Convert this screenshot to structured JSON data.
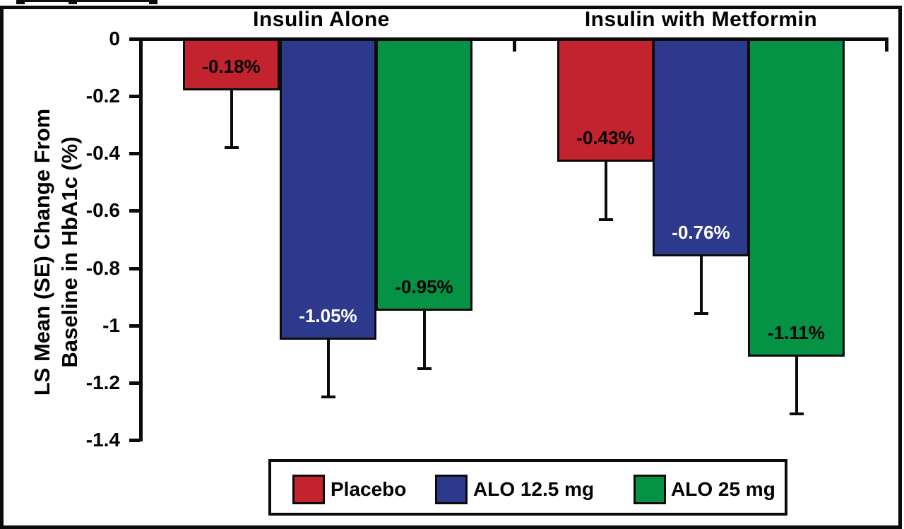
{
  "chart_data": {
    "type": "bar",
    "title": "",
    "ylabel_lines": [
      "LS Mean (SE) Change From",
      "Baseline in HbA1c (%)"
    ],
    "yticks": [
      "0",
      "-0.2",
      "-0.4",
      "-0.6",
      "-0.8",
      "-1",
      "-1.2",
      "-1.4"
    ],
    "ylim": [
      0,
      -1.4
    ],
    "grid": false,
    "legend_position": "bottom",
    "se": 0.2,
    "series": [
      {
        "name": "Placebo",
        "color": "#C2232F",
        "label_color": "#000000"
      },
      {
        "name": "ALO 12.5 mg",
        "color": "#2D3A8C",
        "label_color": "#FFFFFF"
      },
      {
        "name": "ALO 25 mg",
        "color": "#059245",
        "label_color": "#000000"
      }
    ],
    "groups": [
      {
        "label": "Insulin Alone",
        "bars": [
          {
            "series": "Placebo",
            "value": -0.18,
            "label": "-0.18%",
            "error_tip": -0.38
          },
          {
            "series": "ALO 12.5 mg",
            "value": -1.05,
            "label": "-1.05%",
            "error_tip": -1.25
          },
          {
            "series": "ALO 25 mg",
            "value": -0.95,
            "label": "-0.95%",
            "error_tip": -1.15
          }
        ]
      },
      {
        "label": "Insulin with Metformin",
        "bars": [
          {
            "series": "Placebo",
            "value": -0.43,
            "label": "-0.43%",
            "error_tip": -0.63
          },
          {
            "series": "ALO 12.5 mg",
            "value": -0.76,
            "label": "-0.76%",
            "error_tip": -0.96
          },
          {
            "series": "ALO 25 mg",
            "value": -1.11,
            "label": "-1.11%",
            "error_tip": -1.31
          }
        ]
      }
    ]
  },
  "legend": {
    "items": [
      {
        "label": "Placebo",
        "color": "#C2232F"
      },
      {
        "label": "ALO 12.5 mg",
        "color": "#2D3A8C"
      },
      {
        "label": "ALO 25 mg",
        "color": "#059245"
      }
    ]
  }
}
